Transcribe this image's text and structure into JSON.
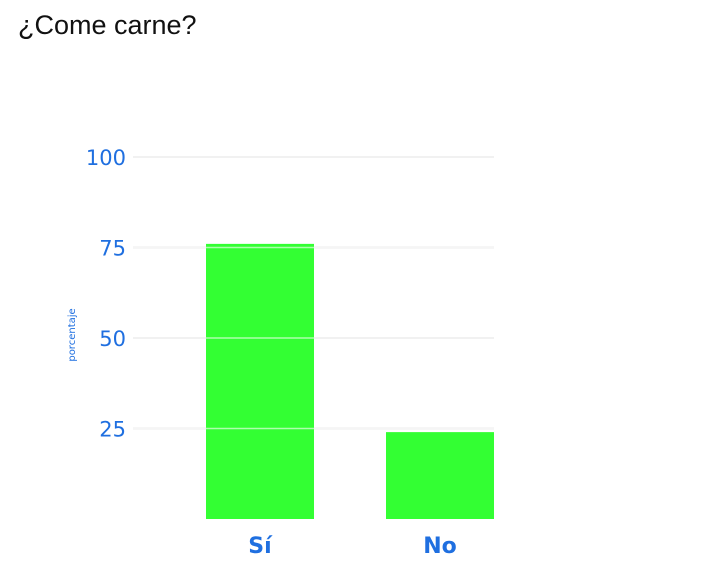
{
  "chart_data": {
    "type": "bar",
    "title": "¿Come carne?",
    "xlabel": "",
    "ylabel": "porcentaje",
    "categories": [
      "Sí",
      "No"
    ],
    "values": [
      76,
      24
    ],
    "ylim": [
      0,
      100
    ],
    "yticks": [
      25,
      50,
      75,
      100
    ],
    "grid": true,
    "legend": "none"
  },
  "colors": {
    "bar": "#33ff33",
    "axis_text": "#1f6fe0",
    "grid": "#e6e6e6",
    "title": "#111111"
  }
}
